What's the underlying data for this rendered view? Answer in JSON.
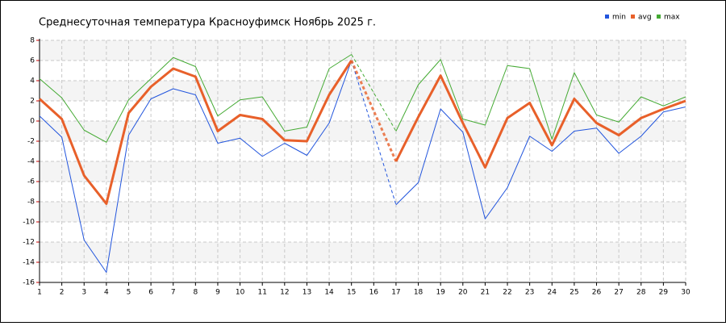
{
  "chart_data": {
    "type": "line",
    "title": "Среднесуточная температура Красноуфимск  Ноябрь 2025 г.",
    "x": [
      1,
      2,
      3,
      4,
      5,
      6,
      7,
      8,
      9,
      10,
      11,
      12,
      13,
      14,
      15,
      16,
      17,
      18,
      19,
      20,
      21,
      22,
      23,
      24,
      25,
      26,
      27,
      28,
      29,
      30
    ],
    "series": [
      {
        "name": "min",
        "color": "#2255dd",
        "values": [
          0.5,
          -1.6,
          -11.8,
          -15.0,
          -1.4,
          2.2,
          3.2,
          2.6,
          -2.2,
          -1.7,
          -3.5,
          -2.2,
          -3.4,
          -0.2,
          6.0,
          null,
          -8.3,
          -6.1,
          1.2,
          -1.1,
          -9.7,
          -6.6,
          -1.5,
          -3.0,
          -1.0,
          -0.7,
          -3.2,
          -1.5,
          0.9,
          1.4
        ]
      },
      {
        "name": "avg",
        "color": "#e8602a",
        "values": [
          2.2,
          0.2,
          -5.4,
          -8.2,
          0.8,
          3.4,
          5.2,
          4.4,
          -1.0,
          0.6,
          0.2,
          -1.9,
          -2.0,
          2.6,
          6.0,
          null,
          -4.0,
          0.4,
          4.5,
          -0.2,
          -4.6,
          0.3,
          1.8,
          -2.4,
          2.2,
          -0.2,
          -1.4,
          0.3,
          1.2,
          2.0
        ]
      },
      {
        "name": "max",
        "color": "#44aa33",
        "values": [
          4.2,
          2.3,
          -0.9,
          -2.1,
          2.1,
          4.2,
          6.3,
          5.4,
          0.5,
          2.1,
          2.4,
          -1.0,
          -0.6,
          5.2,
          6.6,
          null,
          -1.0,
          3.6,
          6.1,
          0.2,
          -0.4,
          5.5,
          5.2,
          -1.8,
          4.8,
          0.6,
          -0.1,
          2.4,
          1.5,
          2.4
        ]
      }
    ],
    "xlim": [
      1,
      30
    ],
    "ylim": [
      -16,
      8
    ],
    "yticks": [
      -16,
      -14,
      -12,
      -10,
      -8,
      -6,
      -4,
      -2,
      0,
      2,
      4,
      6,
      8
    ],
    "grid": true
  }
}
